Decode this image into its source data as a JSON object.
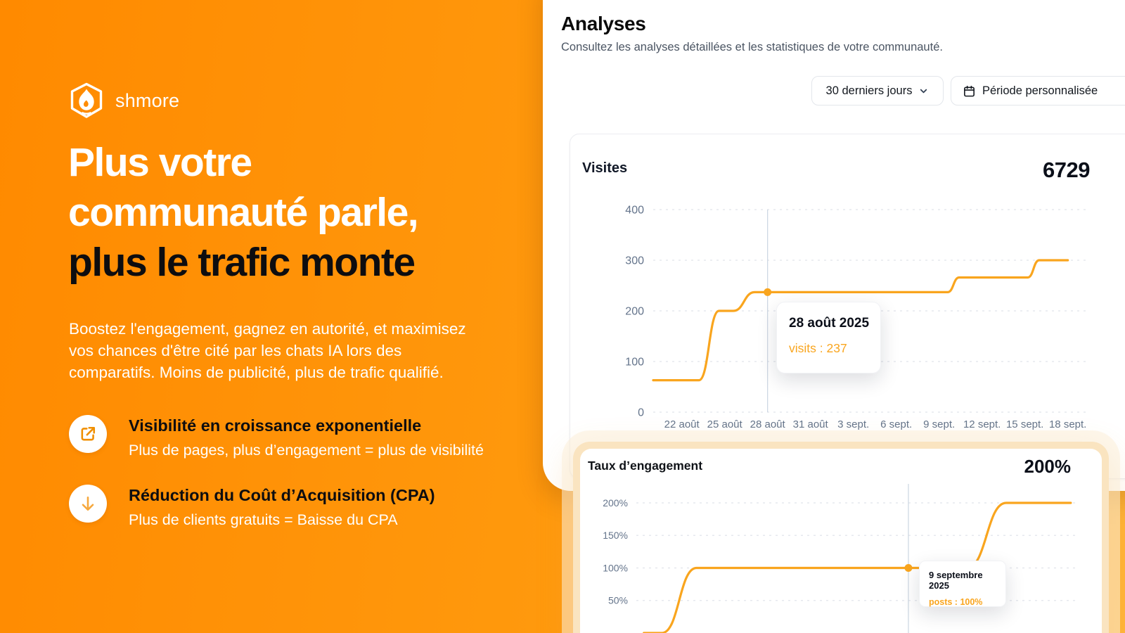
{
  "brand": {
    "name": "shmore"
  },
  "hero": {
    "headline_line1": "Plus votre",
    "headline_line2": "communauté parle,",
    "headline_line3": "plus le trafic monte",
    "paragraph": "Boostez l'engagement, gagnez en autorité, et maximisez vos chances d'être cité par les chats IA lors des comparatifs. Moins de publicité, plus de trafic qualifié.",
    "features": [
      {
        "icon": "external-link-icon",
        "title": "Visibilité en croissance exponentielle",
        "subtitle": "Plus de pages, plus d’engagement = plus de visibilité"
      },
      {
        "icon": "arrow-down-icon",
        "title": "Réduction du Coût d’Acquisition (CPA)",
        "subtitle": "Plus de clients gratuits = Baisse du CPA"
      }
    ]
  },
  "dashboard": {
    "title": "Analyses",
    "subtitle": "Consultez les analyses détaillées et les statistiques de votre communauté.",
    "filters": {
      "range_button": "30 derniers jours",
      "custom_button": "Période personnalisée"
    }
  },
  "colors": {
    "accent_orange": "#F9A51E",
    "hero_gradient_start": "#FF8A00",
    "hero_gradient_end": "#FFA81F",
    "card_highlight_border": "#FAE4C0",
    "gridline": "#E6E8EE",
    "axis_label": "#64748B"
  },
  "chart_data": [
    {
      "type": "line",
      "title": "Visites",
      "total": "6729",
      "ylim": [
        0,
        400
      ],
      "xlim": [
        0,
        30
      ],
      "grid": "dashed",
      "legend": "none",
      "yticks": [
        {
          "value": 0,
          "label": "0"
        },
        {
          "value": 100,
          "label": "100"
        },
        {
          "value": 200,
          "label": "200"
        },
        {
          "value": 300,
          "label": "300"
        },
        {
          "value": 400,
          "label": "400"
        }
      ],
      "xticks": [
        {
          "day": 2,
          "label": "22 août"
        },
        {
          "day": 5,
          "label": "25 août"
        },
        {
          "day": 8,
          "label": "28 août"
        },
        {
          "day": 11,
          "label": "31 août"
        },
        {
          "day": 14,
          "label": "3 sept."
        },
        {
          "day": 17,
          "label": "6 sept."
        },
        {
          "day": 20,
          "label": "9 sept."
        },
        {
          "day": 23,
          "label": "12 sept."
        },
        {
          "day": 26,
          "label": "15 sept."
        },
        {
          "day": 29,
          "label": "18 sept."
        }
      ],
      "series": [
        {
          "name": "visits",
          "color": "#F9A51E",
          "points": [
            [
              0,
              63
            ],
            [
              3.2,
              63
            ],
            [
              4.6,
              200
            ],
            [
              5.6,
              200
            ],
            [
              7.1,
              237
            ],
            [
              20.6,
              237
            ],
            [
              21.4,
              266
            ],
            [
              26.2,
              266
            ],
            [
              27,
              300
            ],
            [
              29,
              300
            ]
          ]
        }
      ],
      "marker": {
        "day": 8,
        "value": 237
      },
      "tooltip": {
        "date": "28 août 2025",
        "text": "visits : 237"
      }
    },
    {
      "type": "line",
      "title": "Taux d’engagement",
      "total": "200%",
      "ylim": [
        0,
        200
      ],
      "xlim": [
        0,
        29
      ],
      "grid": "dashed",
      "legend": "none",
      "yticks": [
        {
          "value": 50,
          "label": "50%"
        },
        {
          "value": 100,
          "label": "100%"
        },
        {
          "value": 150,
          "label": "150%"
        },
        {
          "value": 200,
          "label": "200%"
        }
      ],
      "xticks": [],
      "series": [
        {
          "name": "posts",
          "color": "#F9A51E",
          "points": [
            [
              0.5,
              0
            ],
            [
              1.7,
              0
            ],
            [
              4,
              100
            ],
            [
              22,
              100
            ],
            [
              24.6,
              200
            ],
            [
              28.9,
              200
            ]
          ]
        }
      ],
      "marker": {
        "day": 18.1,
        "value": 100
      },
      "tooltip": {
        "date": "9 septembre 2025",
        "text": "posts : 100%"
      }
    }
  ]
}
